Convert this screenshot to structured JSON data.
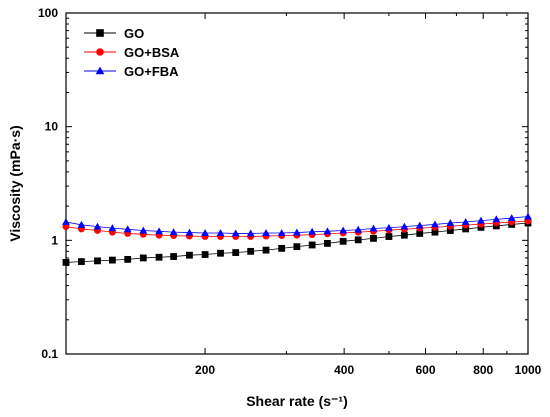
{
  "chart_data": {
    "type": "scatter",
    "title": "",
    "xlabel": "Shear rate",
    "xlabel_unit": "(s⁻¹)",
    "ylabel": "Viscosity (mPa·s)",
    "xscale": "log",
    "yscale": "log",
    "xlim": [
      100,
      1000
    ],
    "ylim": [
      0.1,
      100
    ],
    "x_ticks": [
      200,
      400,
      600,
      800,
      1000
    ],
    "x_tick_labels": [
      "200",
      "400",
      "600",
      "800",
      "1000"
    ],
    "y_ticks": [
      0.1,
      1,
      10,
      100
    ],
    "y_tick_labels": [
      "0.1",
      "1",
      "10",
      "100"
    ],
    "grid": false,
    "legend_position": "top-left",
    "series": [
      {
        "name": "GO",
        "marker": "square",
        "color": "#000000",
        "x": [
          100,
          108,
          117,
          126,
          136,
          147,
          159,
          171,
          185,
          200,
          216,
          233,
          251,
          271,
          293,
          316,
          341,
          368,
          398,
          429,
          463,
          500,
          540,
          583,
          629,
          679,
          733,
          791,
          854,
          922,
          1000
        ],
        "y": [
          0.64,
          0.65,
          0.66,
          0.67,
          0.68,
          0.7,
          0.71,
          0.72,
          0.74,
          0.75,
          0.77,
          0.78,
          0.8,
          0.82,
          0.85,
          0.88,
          0.91,
          0.94,
          0.98,
          1.01,
          1.04,
          1.08,
          1.11,
          1.15,
          1.18,
          1.22,
          1.26,
          1.3,
          1.34,
          1.38,
          1.42
        ]
      },
      {
        "name": "GO+BSA",
        "marker": "circle",
        "color": "#ff0000",
        "x": [
          100,
          108,
          117,
          126,
          136,
          147,
          159,
          171,
          185,
          200,
          216,
          233,
          251,
          271,
          293,
          316,
          341,
          368,
          398,
          429,
          463,
          500,
          540,
          583,
          629,
          679,
          733,
          791,
          854,
          922,
          1000
        ],
        "y": [
          1.32,
          1.26,
          1.22,
          1.18,
          1.15,
          1.13,
          1.11,
          1.1,
          1.09,
          1.08,
          1.08,
          1.08,
          1.08,
          1.09,
          1.1,
          1.11,
          1.12,
          1.14,
          1.16,
          1.18,
          1.2,
          1.23,
          1.25,
          1.28,
          1.3,
          1.33,
          1.36,
          1.39,
          1.42,
          1.45,
          1.48
        ]
      },
      {
        "name": "GO+FBA",
        "marker": "triangle",
        "color": "#0000ff",
        "x": [
          100,
          108,
          117,
          126,
          136,
          147,
          159,
          171,
          185,
          200,
          216,
          233,
          251,
          271,
          293,
          316,
          341,
          368,
          398,
          429,
          463,
          500,
          540,
          583,
          629,
          679,
          733,
          791,
          854,
          922,
          1000
        ],
        "y": [
          1.45,
          1.37,
          1.32,
          1.28,
          1.25,
          1.22,
          1.2,
          1.18,
          1.17,
          1.16,
          1.16,
          1.15,
          1.15,
          1.16,
          1.16,
          1.17,
          1.19,
          1.2,
          1.22,
          1.24,
          1.27,
          1.29,
          1.32,
          1.35,
          1.38,
          1.42,
          1.45,
          1.49,
          1.53,
          1.57,
          1.62
        ]
      }
    ]
  }
}
